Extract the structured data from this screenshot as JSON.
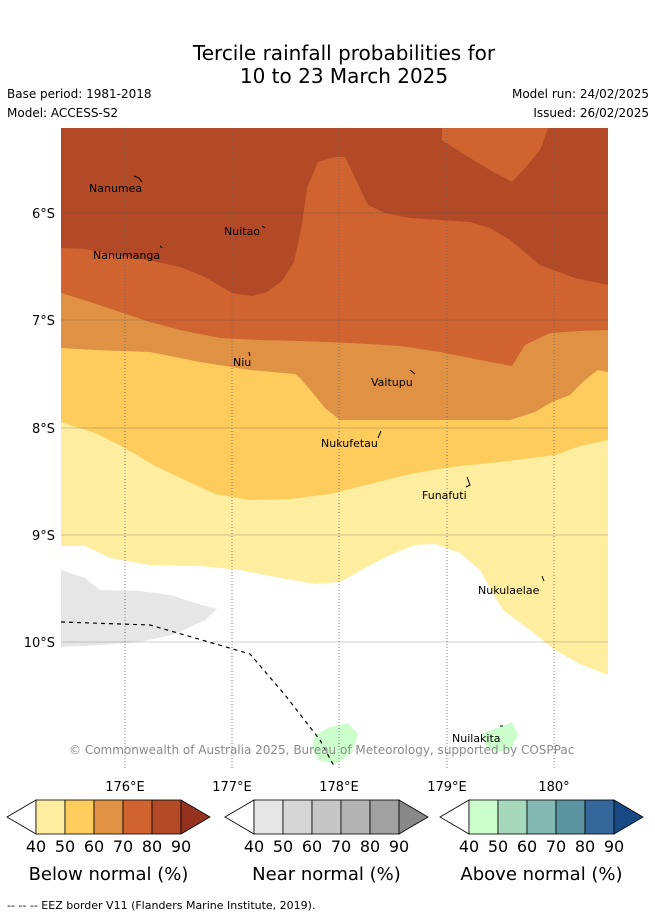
{
  "title": {
    "line1": "Tercile rainfall probabilities for",
    "line2": "10 to 23 March 2025"
  },
  "meta": {
    "base_period": "Base period: 1981-2018",
    "model": "Model: ACCESS-S2",
    "model_run": "Model run: 24/02/2025",
    "issued": "Issued: 26/02/2025"
  },
  "map": {
    "lat_labels": [
      "6°S",
      "7°S",
      "8°S",
      "9°S",
      "10°S"
    ],
    "lon_labels": [
      "176°E",
      "177°E",
      "178°E",
      "179°E",
      "180°"
    ],
    "islands": [
      "Nanumea",
      "Nuitao",
      "Nanumanga",
      "Niu",
      "Vaitupu",
      "Nukufetau",
      "Funafuti",
      "Nukulaelae",
      "Nuilakita"
    ],
    "copyright": "© Commonwealth of Australia 2025, Bureau of Meteorology, supported by COSPPac",
    "colors": {
      "below_40": "#ffeda0",
      "below_50": "#fecc5c",
      "below_60": "#e09244",
      "below_70": "#cf6430",
      "below_80": "#b24a27",
      "near_40": "#e6e6e6",
      "above_40": "#ccffcc"
    }
  },
  "colorbars": [
    {
      "title": "Below normal (%)",
      "ticks": [
        "40",
        "50",
        "60",
        "70",
        "80",
        "90"
      ],
      "colors": [
        "#ffeda0",
        "#fecc5c",
        "#e09244",
        "#cf6430",
        "#b24a27",
        "#94321f"
      ]
    },
    {
      "title": "Near normal (%)",
      "ticks": [
        "40",
        "50",
        "60",
        "70",
        "80",
        "90"
      ],
      "colors": [
        "#e6e6e6",
        "#d6d6d6",
        "#c6c6c6",
        "#b3b3b3",
        "#a0a0a0",
        "#888888"
      ]
    },
    {
      "title": "Above normal (%)",
      "ticks": [
        "40",
        "50",
        "60",
        "70",
        "80",
        "90"
      ],
      "colors": [
        "#ccffcc",
        "#a6d8bd",
        "#84b8b2",
        "#5b93a0",
        "#35679b",
        "#174a85"
      ]
    }
  ],
  "footer": "--  --  -- EEZ border V11 (Flanders Marine Institute, 2019)."
}
